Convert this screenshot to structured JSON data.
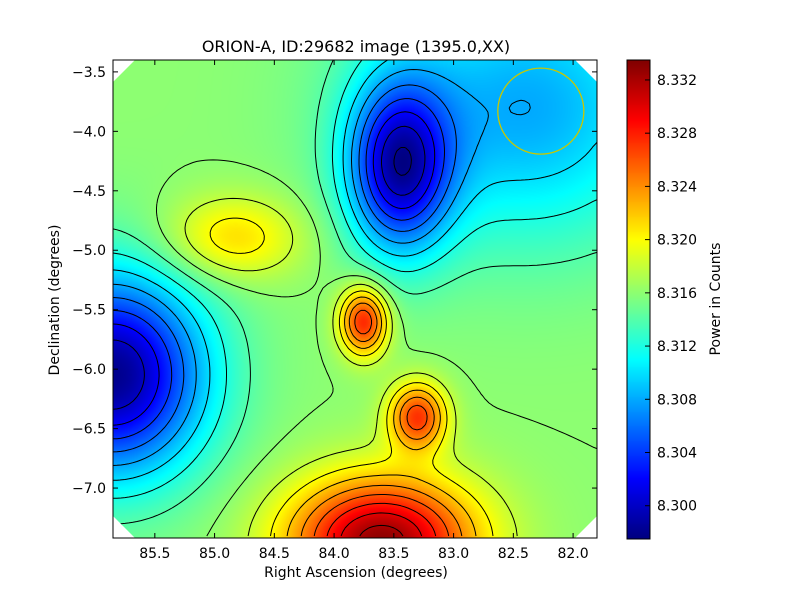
{
  "chart_data": {
    "type": "heatmap",
    "title": "ORION-A, ID:29682 image (1395.0,XX)",
    "xlabel": "Right Ascension (degrees)",
    "ylabel": "Declination (degrees)",
    "xlim": [
      85.85,
      81.8
    ],
    "ylim": [
      -7.42,
      -3.4
    ],
    "x_ticks": [
      85.5,
      85.0,
      84.5,
      84.0,
      83.5,
      83.0,
      82.5,
      82.0
    ],
    "x_tick_labels": [
      "85.5",
      "85.0",
      "84.5",
      "84.0",
      "83.5",
      "83.0",
      "82.5",
      "82.0"
    ],
    "y_ticks": [
      -3.5,
      -4.0,
      -4.5,
      -5.0,
      -5.5,
      -6.0,
      -6.5,
      -7.0
    ],
    "y_tick_labels": [
      "−3.5",
      "−4.0",
      "−4.5",
      "−5.0",
      "−5.5",
      "−6.0",
      "−6.5",
      "−7.0"
    ],
    "colorbar": {
      "label": "Power in Counts",
      "range": [
        8.2975,
        8.3335
      ],
      "ticks": [
        8.3,
        8.304,
        8.308,
        8.312,
        8.316,
        8.32,
        8.324,
        8.328,
        8.332
      ],
      "tick_labels": [
        "8.300",
        "8.304",
        "8.308",
        "8.312",
        "8.316",
        "8.320",
        "8.324",
        "8.328",
        "8.332"
      ],
      "colormap": "jet"
    },
    "baseline": 8.316,
    "features": [
      {
        "kind": "min",
        "ra": 83.45,
        "dec": -4.3,
        "value": 8.301,
        "sx": 0.3,
        "sy": 0.5
      },
      {
        "kind": "min",
        "ra": 85.85,
        "dec": -6.05,
        "value": 8.298,
        "sx": 0.55,
        "sy": 0.6
      },
      {
        "kind": "min",
        "ra": 82.4,
        "dec": -3.8,
        "value": 8.308,
        "sx": 0.9,
        "sy": 0.8
      },
      {
        "kind": "max",
        "ra": 84.85,
        "dec": -4.9,
        "value": 8.3215,
        "sx": 0.4,
        "sy": 0.25
      },
      {
        "kind": "max",
        "ra": 83.75,
        "dec": -5.6,
        "value": 8.328,
        "sx": 0.14,
        "sy": 0.2
      },
      {
        "kind": "max",
        "ra": 83.3,
        "dec": -6.4,
        "value": 8.327,
        "sx": 0.17,
        "sy": 0.2
      },
      {
        "kind": "max",
        "ra": 83.6,
        "dec": -7.45,
        "value": 8.333,
        "sx": 0.55,
        "sy": 0.38
      }
    ],
    "contour_interval": 0.002,
    "beam_circle": {
      "ra": 82.27,
      "dec": -3.83,
      "radius_deg": 0.36,
      "color": "#c8c800"
    },
    "corner_mask": "octagon"
  }
}
